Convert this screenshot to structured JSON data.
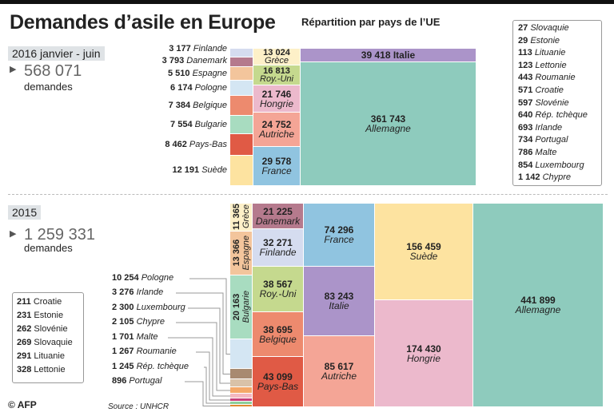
{
  "title": "Demandes d’asile en Europe",
  "subtitle": "Répartition par pays de l’UE",
  "source": "Source : UNHCR",
  "credit": "© AFP",
  "chart_data": [
    {
      "type": "treemap",
      "period": "2016  janvier - juin",
      "total": "568 071",
      "total_label": "demandes",
      "items": [
        {
          "name": "Allemagne",
          "value": 361743,
          "color": "#8ecbbd"
        },
        {
          "name": "Italie",
          "value": 39418,
          "color": "#ab94c9"
        },
        {
          "name": "France",
          "value": 29578,
          "color": "#90c4e0"
        },
        {
          "name": "Autriche",
          "value": 24752,
          "color": "#f4a596"
        },
        {
          "name": "Hongrie",
          "value": 21746,
          "color": "#ecb9cc"
        },
        {
          "name": "Roy.-Uni",
          "value": 16813,
          "color": "#c5d98e"
        },
        {
          "name": "Grèce",
          "value": 13024,
          "color": "#fdf0c8"
        },
        {
          "name": "Suède",
          "value": 12191,
          "color": "#fde3a0"
        },
        {
          "name": "Pays-Bas",
          "value": 8462,
          "color": "#e05a45"
        },
        {
          "name": "Bulgarie",
          "value": 7554,
          "color": "#a8dcc0"
        },
        {
          "name": "Belgique",
          "value": 7384,
          "color": "#ed8a6e"
        },
        {
          "name": "Pologne",
          "value": 6174,
          "color": "#d4e6f3"
        },
        {
          "name": "Espagne",
          "value": 5510,
          "color": "#f3c59c"
        },
        {
          "name": "Danemark",
          "value": 3793,
          "color": "#b57a8d"
        },
        {
          "name": "Finlande",
          "value": 3177,
          "color": "#d5dcef"
        }
      ],
      "legend": [
        {
          "name": "Slovaquie",
          "value": "27"
        },
        {
          "name": "Estonie",
          "value": "29"
        },
        {
          "name": "Lituanie",
          "value": "113"
        },
        {
          "name": "Lettonie",
          "value": "123"
        },
        {
          "name": "Roumanie",
          "value": "443"
        },
        {
          "name": "Croatie",
          "value": "571"
        },
        {
          "name": "Slovénie",
          "value": "597"
        },
        {
          "name": "Rép. tchèque",
          "value": "640"
        },
        {
          "name": "Irlande",
          "value": "693"
        },
        {
          "name": "Portugal",
          "value": "734"
        },
        {
          "name": "Malte",
          "value": "786"
        },
        {
          "name": "Luxembourg",
          "value": "854"
        },
        {
          "name": "Chypre",
          "value": "1 142"
        }
      ]
    },
    {
      "type": "treemap",
      "period": "2015",
      "total": "1 259 331",
      "total_label": "demandes",
      "items": [
        {
          "name": "Allemagne",
          "value": 441899,
          "color": "#8ecbbd"
        },
        {
          "name": "Hongrie",
          "value": 174430,
          "color": "#ecb9cc"
        },
        {
          "name": "Suède",
          "value": 156459,
          "color": "#fde3a0"
        },
        {
          "name": "Autriche",
          "value": 85617,
          "color": "#f4a596"
        },
        {
          "name": "Italie",
          "value": 83243,
          "color": "#ab94c9"
        },
        {
          "name": "France",
          "value": 74296,
          "color": "#90c4e0"
        },
        {
          "name": "Pays-Bas",
          "value": 43099,
          "color": "#e05a45"
        },
        {
          "name": "Belgique",
          "value": 38695,
          "color": "#ed8a6e"
        },
        {
          "name": "Roy.-Uni",
          "value": 38567,
          "color": "#c5d98e"
        },
        {
          "name": "Finlande",
          "value": 32271,
          "color": "#d5dcef"
        },
        {
          "name": "Danemark",
          "value": 21225,
          "color": "#b57a8d"
        },
        {
          "name": "Bulgarie",
          "value": 20163,
          "color": "#a8dcc0"
        },
        {
          "name": "Espagne",
          "value": 13366,
          "color": "#f3c59c"
        },
        {
          "name": "Grèce",
          "value": 11365,
          "color": "#fdf0c8"
        },
        {
          "name": "Pologne",
          "value": 10254,
          "color": "#d4e6f3"
        },
        {
          "name": "Irlande",
          "value": 3276,
          "color": "#a88a70"
        },
        {
          "name": "Luxembourg",
          "value": 2300,
          "color": "#d9c2a8"
        },
        {
          "name": "Chypre",
          "value": 2105,
          "color": "#f4a868"
        },
        {
          "name": "Malte",
          "value": 1701,
          "color": "#f4b8c0"
        },
        {
          "name": "Roumanie",
          "value": 1267,
          "color": "#c8407a"
        },
        {
          "name": "Rép. tchèque",
          "value": 1245,
          "color": "#8ccf9a"
        },
        {
          "name": "Portugal",
          "value": 896,
          "color": "#e08a30"
        }
      ],
      "legend": [
        {
          "name": "Croatie",
          "value": "211"
        },
        {
          "name": "Estonie",
          "value": "231"
        },
        {
          "name": "Slovénie",
          "value": "262"
        },
        {
          "name": "Slovaquie",
          "value": "269"
        },
        {
          "name": "Lituanie",
          "value": "291"
        },
        {
          "name": "Lettonie",
          "value": "328"
        }
      ]
    }
  ]
}
